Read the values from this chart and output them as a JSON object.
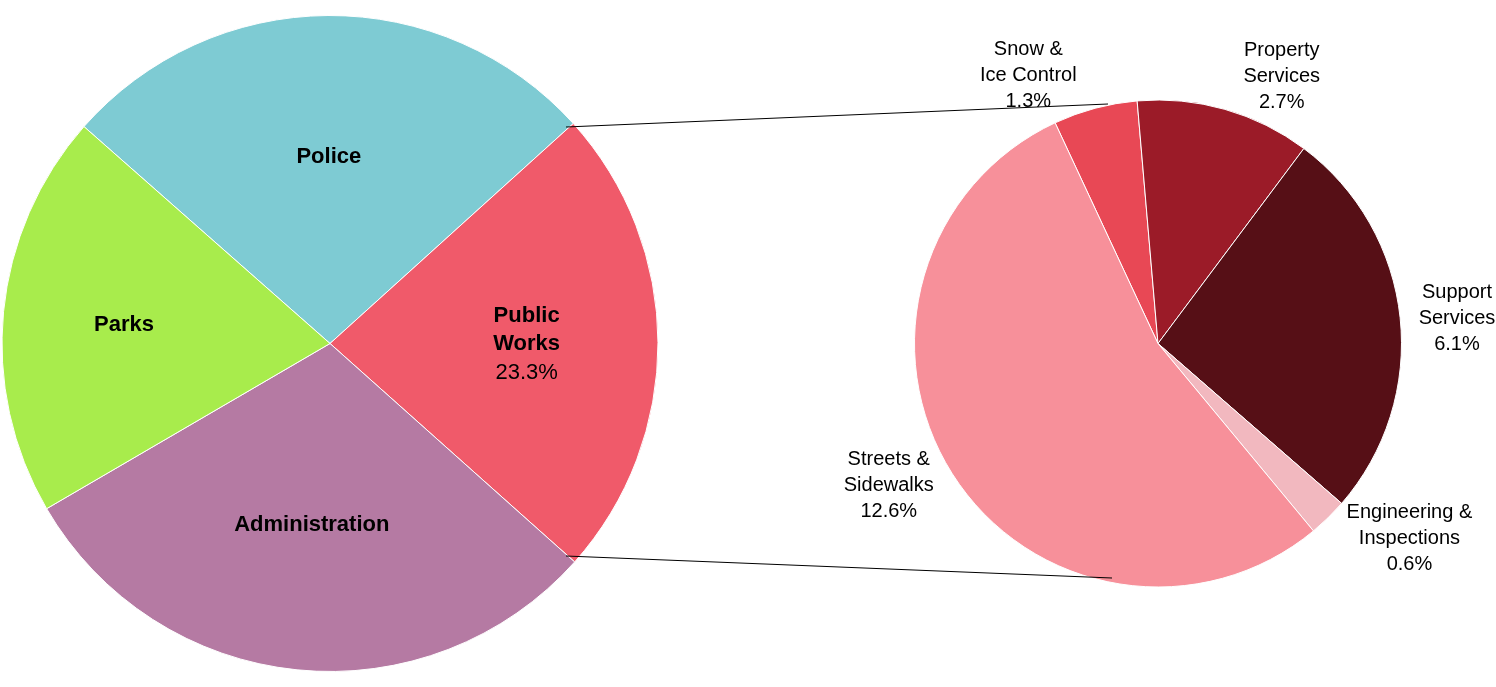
{
  "chart_data": [
    {
      "type": "pie",
      "categories": [
        "Police",
        "Public Works",
        "Administration",
        "Parks"
      ],
      "values": [
        26.8,
        23.3,
        30,
        19.9
      ],
      "colors": [
        "#7ecbd3",
        "#f05a6a",
        "#b57aa3",
        "#a8ec4c"
      ],
      "value_labels": [
        null,
        "23.3%",
        null,
        null
      ],
      "legend": false
    },
    {
      "type": "pie",
      "categories": [
        "Snow & Ice Control",
        "Property Services",
        "Support Services",
        "Engineering & Inspections",
        "Streets & Sidewalks"
      ],
      "values": [
        1.3,
        2.7,
        6.1,
        0.6,
        12.6
      ],
      "colors": [
        "#e84855",
        "#9b1b28",
        "#560f16",
        "#f2b8bf",
        "#f7909a"
      ],
      "value_labels": [
        "1.3%",
        "2.7%",
        "6.1%",
        "0.6%",
        "12.6%"
      ],
      "legend": false
    }
  ]
}
